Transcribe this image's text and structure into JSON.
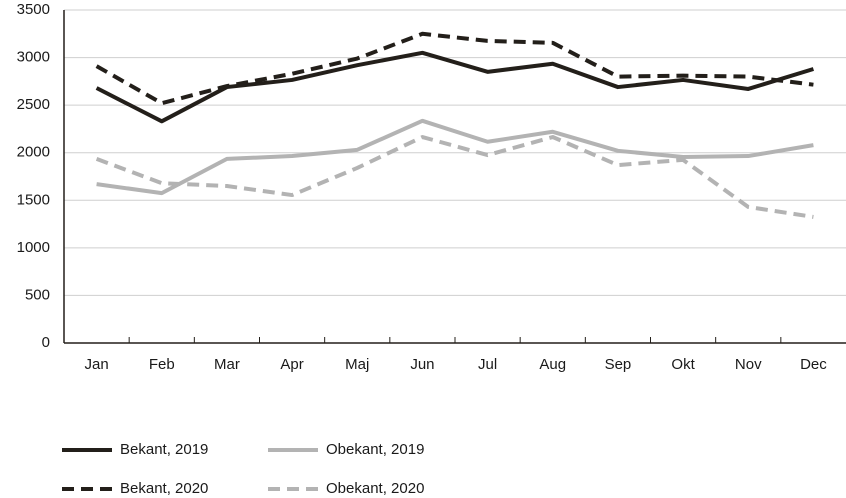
{
  "chart_data": {
    "type": "line",
    "categories": [
      "Jan",
      "Feb",
      "Mar",
      "Apr",
      "Maj",
      "Jun",
      "Jul",
      "Aug",
      "Sep",
      "Okt",
      "Nov",
      "Dec"
    ],
    "series": [
      {
        "name": "Bekant, 2019",
        "color": "#231f1a",
        "dashed": false,
        "values": [
          2680,
          2330,
          2690,
          2765,
          2920,
          3050,
          2850,
          2935,
          2690,
          2765,
          2670,
          2880
        ]
      },
      {
        "name": "Obekant, 2019",
        "color": "#b3b3b3",
        "dashed": false,
        "values": [
          1670,
          1575,
          1935,
          1965,
          2030,
          2335,
          2115,
          2220,
          2020,
          1955,
          1965,
          2080
        ]
      },
      {
        "name": "Bekant, 2020",
        "color": "#231f1a",
        "dashed": true,
        "values": [
          2910,
          2520,
          2700,
          2830,
          2990,
          3250,
          3175,
          3155,
          2800,
          2810,
          2800,
          2715
        ]
      },
      {
        "name": "Obekant, 2020",
        "color": "#b3b3b3",
        "dashed": true,
        "values": [
          1935,
          1680,
          1650,
          1555,
          1840,
          2165,
          1975,
          2165,
          1870,
          1925,
          1430,
          1325
        ]
      }
    ],
    "ylim": [
      0,
      3500
    ],
    "yticks": [
      0,
      500,
      1000,
      1500,
      2000,
      2500,
      3000,
      3500
    ],
    "grid": true
  }
}
